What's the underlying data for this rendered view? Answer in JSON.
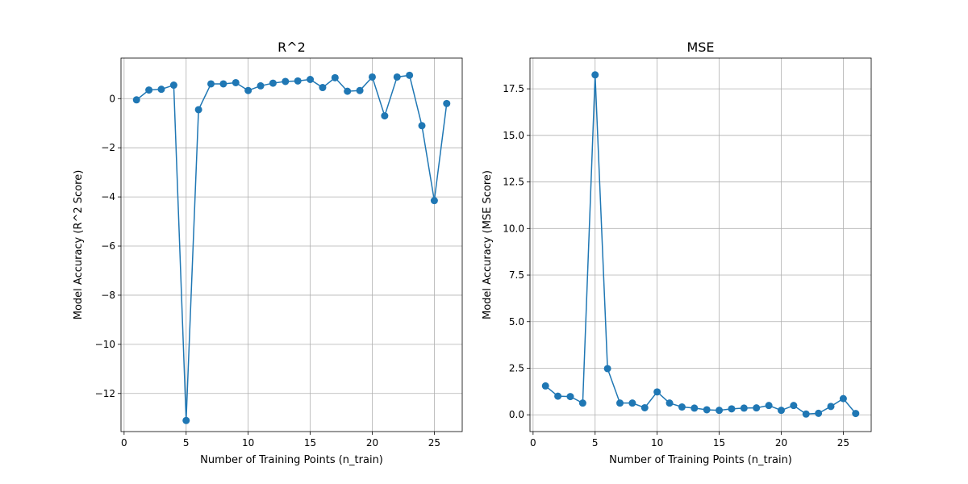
{
  "chart_data": [
    {
      "type": "line",
      "title": "R^2",
      "xlabel": "Number of Training Points (n_train)",
      "ylabel": "Model Accuracy (R^2 Score)",
      "xlim": [
        -0.25,
        27.25
      ],
      "ylim": [
        -13.55,
        1.65
      ],
      "xticks": [
        0,
        5,
        10,
        15,
        20,
        25
      ],
      "xtick_labels": [
        "0",
        "5",
        "10",
        "15",
        "20",
        "25"
      ],
      "yticks": [
        0,
        -2,
        -4,
        -6,
        -8,
        -10,
        -12
      ],
      "ytick_labels": [
        "0",
        "−2",
        "−4",
        "−6",
        "−8",
        "−10",
        "−12"
      ],
      "grid": true,
      "marker": "circle",
      "color": "#1f77b4",
      "x": [
        1,
        2,
        3,
        4,
        5,
        6,
        7,
        8,
        9,
        10,
        11,
        12,
        13,
        14,
        15,
        16,
        17,
        18,
        19,
        20,
        21,
        22,
        23,
        24,
        25,
        26
      ],
      "y": [
        -0.05,
        0.35,
        0.38,
        0.55,
        -13.1,
        -0.45,
        0.6,
        0.6,
        0.65,
        0.33,
        0.52,
        0.63,
        0.7,
        0.72,
        0.78,
        0.45,
        0.85,
        0.3,
        0.33,
        0.88,
        -0.7,
        0.88,
        0.95,
        -1.1,
        -4.15,
        -0.2
      ]
    },
    {
      "type": "line",
      "title": "MSE",
      "xlabel": "Number of Training Points (n_train)",
      "ylabel": "Model Accuracy (MSE Score)",
      "xlim": [
        -0.25,
        27.25
      ],
      "ylim": [
        -0.9,
        19.15
      ],
      "xticks": [
        0,
        5,
        10,
        15,
        20,
        25
      ],
      "xtick_labels": [
        "0",
        "5",
        "10",
        "15",
        "20",
        "25"
      ],
      "yticks": [
        0,
        2.5,
        5,
        7.5,
        10,
        12.5,
        15,
        17.5
      ],
      "ytick_labels": [
        "0.0",
        "2.5",
        "5.0",
        "7.5",
        "10.0",
        "12.5",
        "15.0",
        "17.5"
      ],
      "grid": true,
      "marker": "circle",
      "color": "#1f77b4",
      "x": [
        1,
        2,
        3,
        4,
        5,
        6,
        7,
        8,
        9,
        10,
        11,
        12,
        13,
        14,
        15,
        16,
        17,
        18,
        19,
        20,
        21,
        22,
        23,
        24,
        25,
        26
      ],
      "y": [
        1.55,
        1.0,
        0.98,
        0.63,
        18.25,
        2.48,
        0.63,
        0.63,
        0.38,
        1.23,
        0.63,
        0.42,
        0.36,
        0.27,
        0.24,
        0.32,
        0.36,
        0.37,
        0.5,
        0.24,
        0.5,
        0.04,
        0.08,
        0.45,
        0.87,
        0.07
      ]
    }
  ]
}
